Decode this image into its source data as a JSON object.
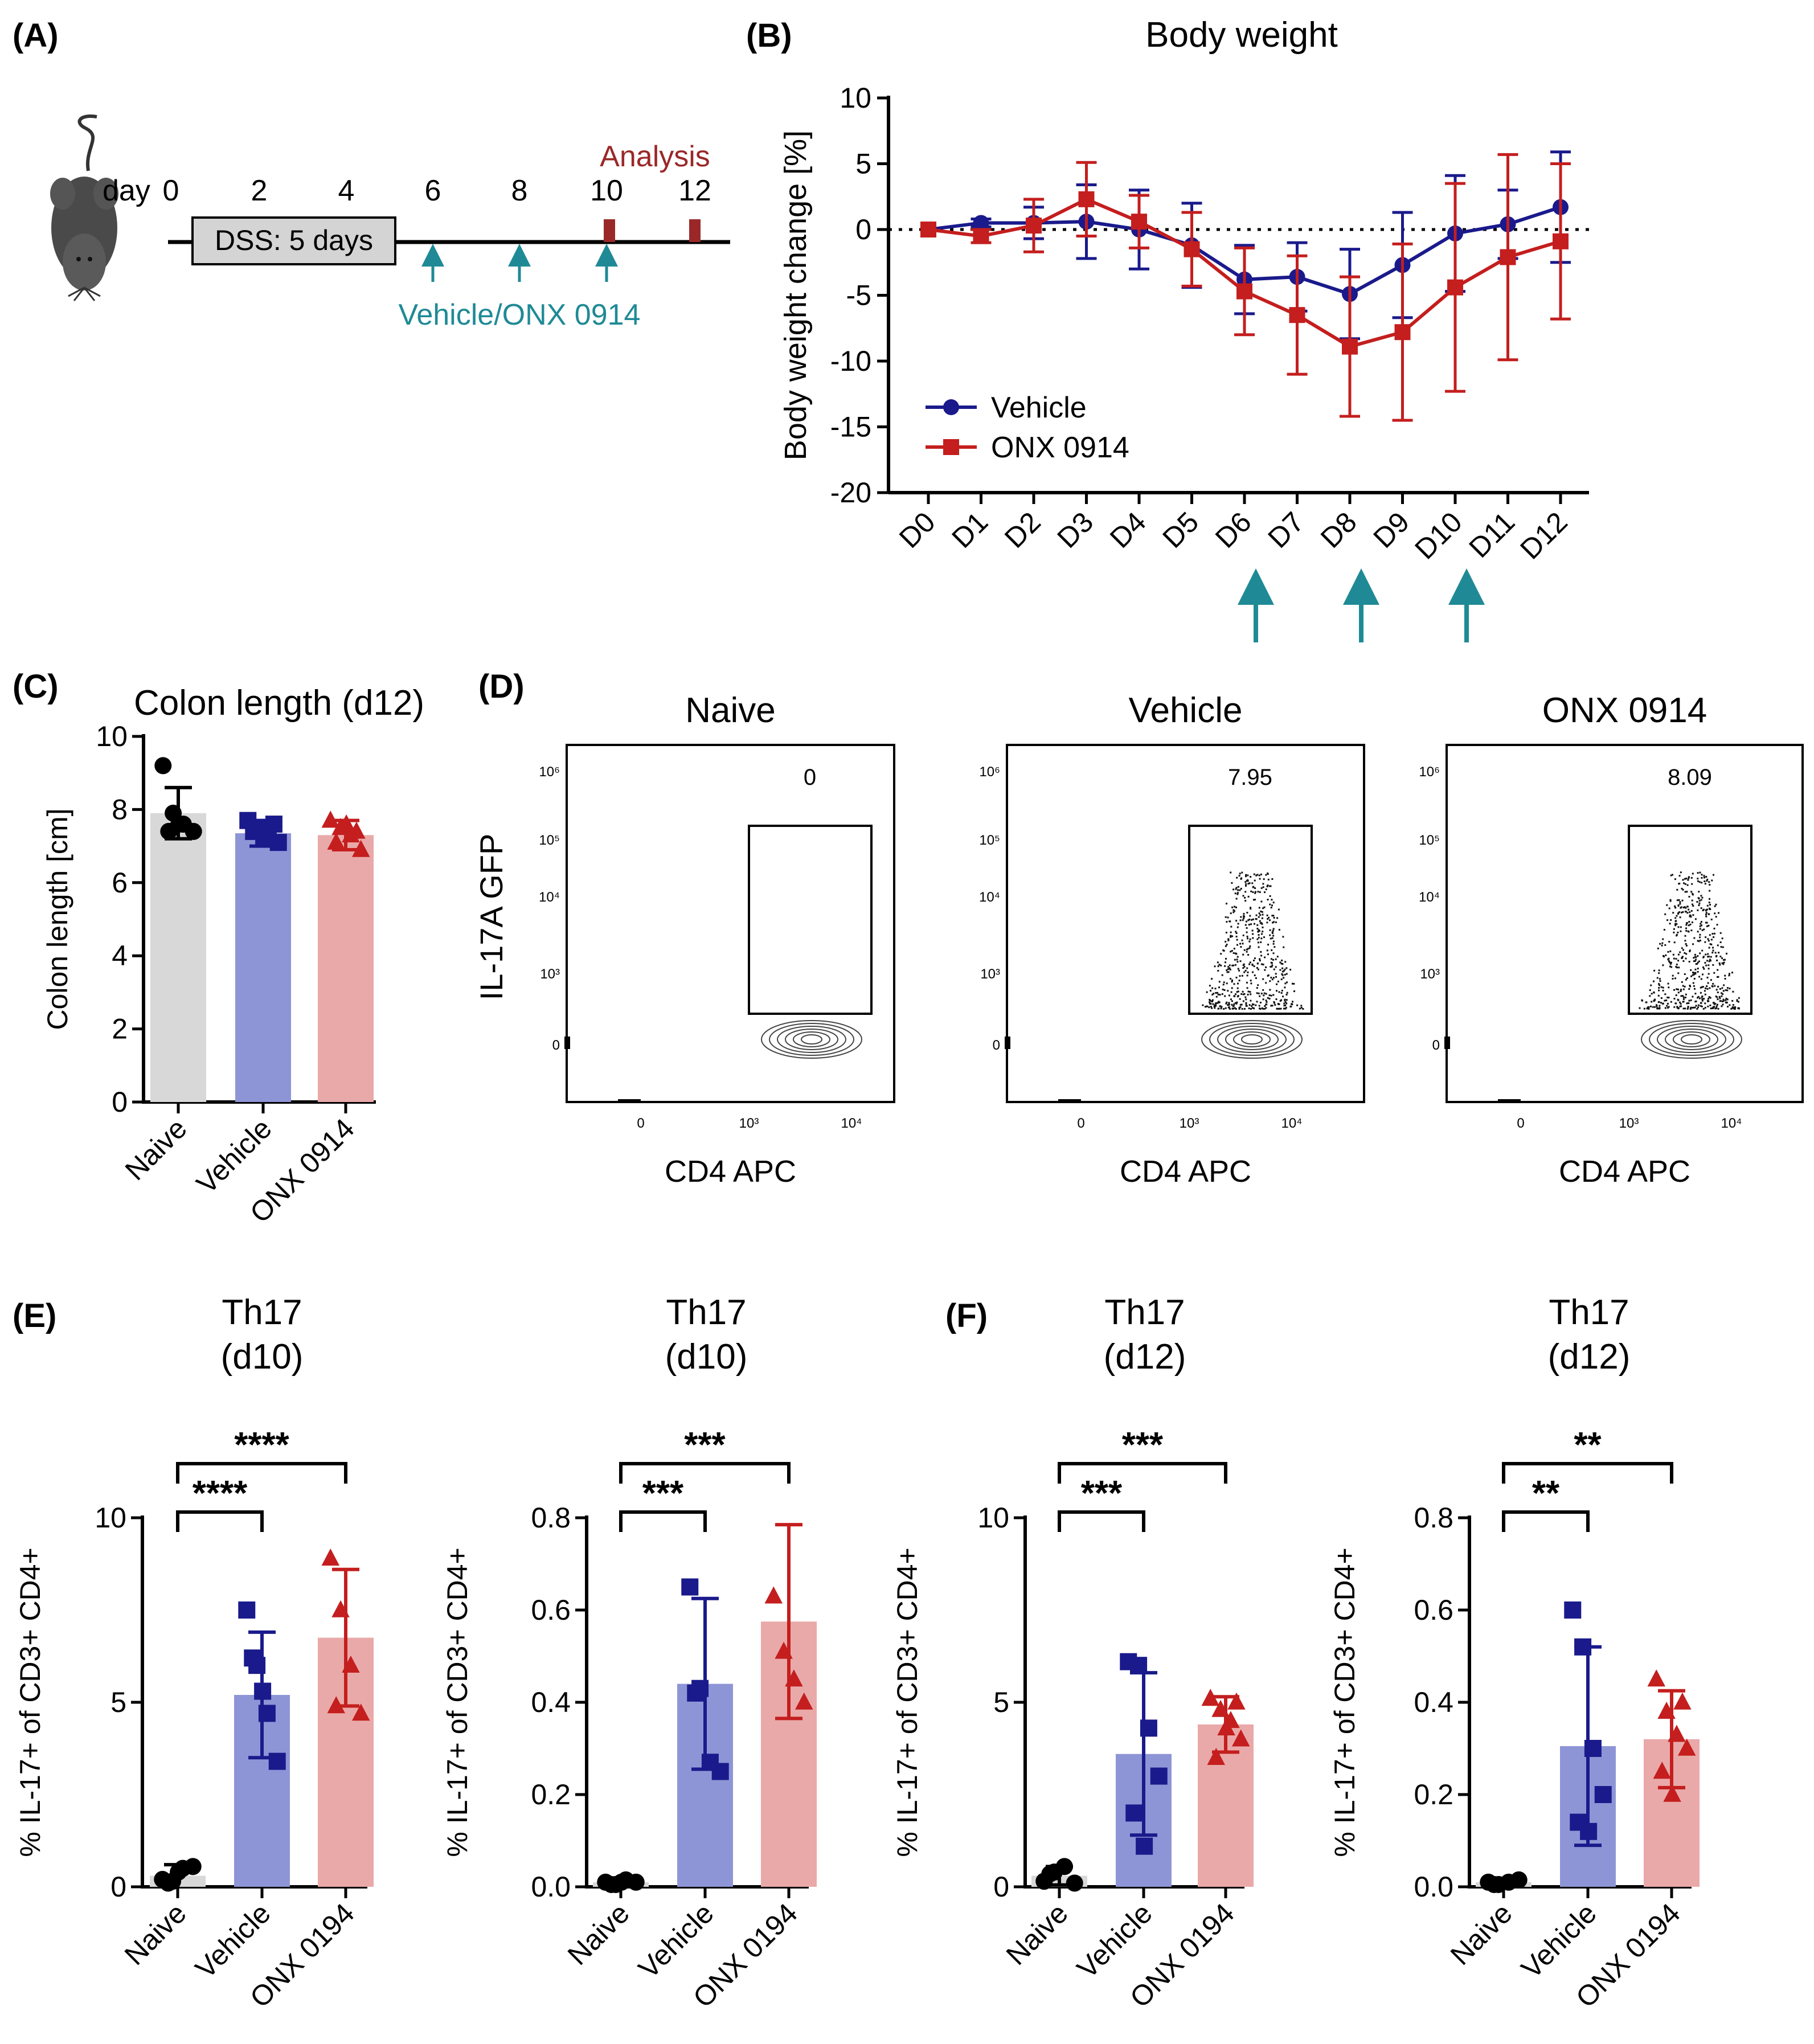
{
  "colors": {
    "vehicle": "#1a1a8c",
    "vehicle_bar": "#8e95d6",
    "onx": "#c41e1e",
    "onx_bar": "#eaa9a9",
    "naive_bar": "#d8d8d8",
    "teal": "#1f8a96",
    "analysis": "#9b2828"
  },
  "panelA": {
    "label": "(A)",
    "day_label": "day",
    "days": [
      "0",
      "2",
      "4",
      "6",
      "8",
      "10",
      "12"
    ],
    "dss_label": "DSS: 5 days",
    "analysis_label": "Analysis",
    "treatment_label": "Vehicle/ONX 0914",
    "icons": [
      "mouse-icon"
    ]
  },
  "chart_data": [
    {
      "id": "B",
      "panel_label": "(B)",
      "type": "line",
      "title": "Body weight",
      "ylabel": "Body weight change [%]",
      "categories": [
        "D0",
        "D1",
        "D2",
        "D3",
        "D4",
        "D5",
        "D6",
        "D7",
        "D8",
        "D9",
        "D10",
        "D11",
        "D12"
      ],
      "ylim": [
        -20,
        10
      ],
      "yticks": [
        "10",
        "5",
        "0",
        "-5",
        "-10",
        "-15",
        "-20"
      ],
      "reference_line": 0,
      "legend_position": "lower-left",
      "treatment_days": [
        "D6",
        "D8",
        "D10"
      ],
      "series": [
        {
          "name": "Vehicle",
          "marker": "circle",
          "values": [
            0,
            0.5,
            0.5,
            0.6,
            0,
            -1.2,
            -3.8,
            -3.6,
            -4.9,
            -2.7,
            -0.3,
            0.4,
            1.7
          ],
          "errors": [
            0,
            0.3,
            1.2,
            2.8,
            3.0,
            3.2,
            2.6,
            2.6,
            3.4,
            4.0,
            4.4,
            2.6,
            4.2
          ]
        },
        {
          "name": "ONX 0914",
          "marker": "square",
          "values": [
            0,
            -0.5,
            0.3,
            2.3,
            0.6,
            -1.5,
            -4.7,
            -6.5,
            -8.9,
            -7.8,
            -4.4,
            -2.1,
            -0.9
          ],
          "errors": [
            0,
            0.5,
            2.0,
            2.8,
            2.0,
            2.8,
            3.3,
            4.5,
            5.3,
            6.7,
            7.9,
            7.8,
            5.9
          ]
        }
      ]
    },
    {
      "id": "C",
      "panel_label": "(C)",
      "type": "bar",
      "title": "Colon length (d12)",
      "ylabel": "Colon length [cm]",
      "categories": [
        "Naive",
        "Vehicle",
        "ONX 0914"
      ],
      "ylim": [
        0,
        10
      ],
      "yticks": [
        "10",
        "8",
        "6",
        "4",
        "2",
        "0"
      ],
      "values": [
        7.9,
        7.35,
        7.3
      ],
      "errors": [
        0.7,
        0.35,
        0.4
      ],
      "points": [
        [
          9.2,
          7.9,
          7.6,
          7.4,
          7.4,
          7.6
        ],
        [
          7.7,
          7.5,
          7.3,
          7.1,
          7.4,
          7.2,
          7.6
        ],
        [
          7.7,
          7.5,
          7.3,
          6.9,
          7.1,
          7.6,
          7.4
        ]
      ]
    },
    {
      "id": "E1",
      "panel_label": "(E)",
      "type": "bar",
      "title": [
        "Th17",
        "(d10)"
      ],
      "ylabel": "% IL-17+ of CD3+ CD4+",
      "categories": [
        "Naive",
        "Vehicle",
        "ONX 0194"
      ],
      "ylim": [
        0,
        10
      ],
      "yticks": [
        "10",
        "5",
        "0"
      ],
      "values": [
        0.3,
        5.2,
        6.75
      ],
      "errors": [
        0.3,
        1.7,
        1.85
      ],
      "points": [
        [
          0.2,
          0.15,
          0.5,
          0.55,
          0.1,
          0.4
        ],
        [
          7.5,
          6.0,
          4.7,
          3.4,
          6.2,
          5.3
        ],
        [
          8.9,
          7.5,
          6.0,
          4.7,
          4.9
        ]
      ],
      "significance": [
        "****",
        "****"
      ]
    },
    {
      "id": "E2",
      "panel_label": "",
      "type": "bar",
      "title": [
        "Th17",
        "(d10)"
      ],
      "ylabel": "% IL-17+ of CD3+ CD4+",
      "categories": [
        "Naive",
        "Vehicle",
        "ONX 0194"
      ],
      "ylim": [
        0,
        0.8
      ],
      "yticks": [
        "0.8",
        "0.6",
        "0.4",
        "0.2",
        "0.0"
      ],
      "values": [
        0.01,
        0.44,
        0.575
      ],
      "errors": [
        0.005,
        0.185,
        0.21
      ],
      "points": [
        [
          0.01,
          0.005,
          0.015,
          0.01,
          0.005,
          0.01
        ],
        [
          0.65,
          0.43,
          0.27,
          0.25,
          0.42
        ],
        [
          0.63,
          0.51,
          0.45,
          0.4
        ]
      ],
      "significance": [
        "***",
        "***"
      ]
    },
    {
      "id": "F1",
      "panel_label": "(F)",
      "type": "bar",
      "title": [
        "Th17",
        "(d12)"
      ],
      "ylabel": "% IL-17+ of CD3+ CD4+",
      "categories": [
        "Naive",
        "Vehicle",
        "ONX 0194"
      ],
      "ylim": [
        0,
        10
      ],
      "yticks": [
        "10",
        "5",
        "0"
      ],
      "values": [
        0.3,
        3.6,
        4.4
      ],
      "errors": [
        0.25,
        2.2,
        0.75
      ],
      "points": [
        [
          0.15,
          0.4,
          0.55,
          0.1,
          0.35
        ],
        [
          6.1,
          6.0,
          4.3,
          3.0,
          2.0,
          1.1
        ],
        [
          5.1,
          4.8,
          4.5,
          4.0,
          3.5,
          4.3,
          5.0
        ]
      ],
      "significance": [
        "***",
        "***"
      ]
    },
    {
      "id": "F2",
      "panel_label": "",
      "type": "bar",
      "title": [
        "Th17",
        "(d12)"
      ],
      "ylabel": "% IL-17+ of CD3+ CD4+",
      "categories": [
        "Naive",
        "Vehicle",
        "ONX 0194"
      ],
      "ylim": [
        0,
        0.8
      ],
      "yticks": [
        "0.8",
        "0.6",
        "0.4",
        "0.2",
        "0.0"
      ],
      "values": [
        0.01,
        0.305,
        0.32
      ],
      "errors": [
        0.005,
        0.215,
        0.105
      ],
      "points": [
        [
          0.01,
          0.005,
          0.01,
          0.015,
          0.005
        ],
        [
          0.6,
          0.52,
          0.3,
          0.2,
          0.14,
          0.12
        ],
        [
          0.45,
          0.38,
          0.33,
          0.3,
          0.25,
          0.2,
          0.4
        ]
      ],
      "significance": [
        "**",
        "**"
      ]
    }
  ],
  "panelD": {
    "label": "(D)",
    "ylabel": "IL-17A GFP",
    "xlabel": "CD4 APC",
    "yticks": [
      "10⁶",
      "10⁵",
      "10⁴",
      "10³",
      "0"
    ],
    "xticks": [
      "0",
      "10³",
      "10⁴"
    ],
    "plots": [
      {
        "title": "Naive",
        "gate_value": "0",
        "gate_events": 0
      },
      {
        "title": "Vehicle",
        "gate_value": "7.95",
        "gate_events": 7.95
      },
      {
        "title": "ONX 0914",
        "gate_value": "8.09",
        "gate_events": 8.09
      }
    ]
  }
}
